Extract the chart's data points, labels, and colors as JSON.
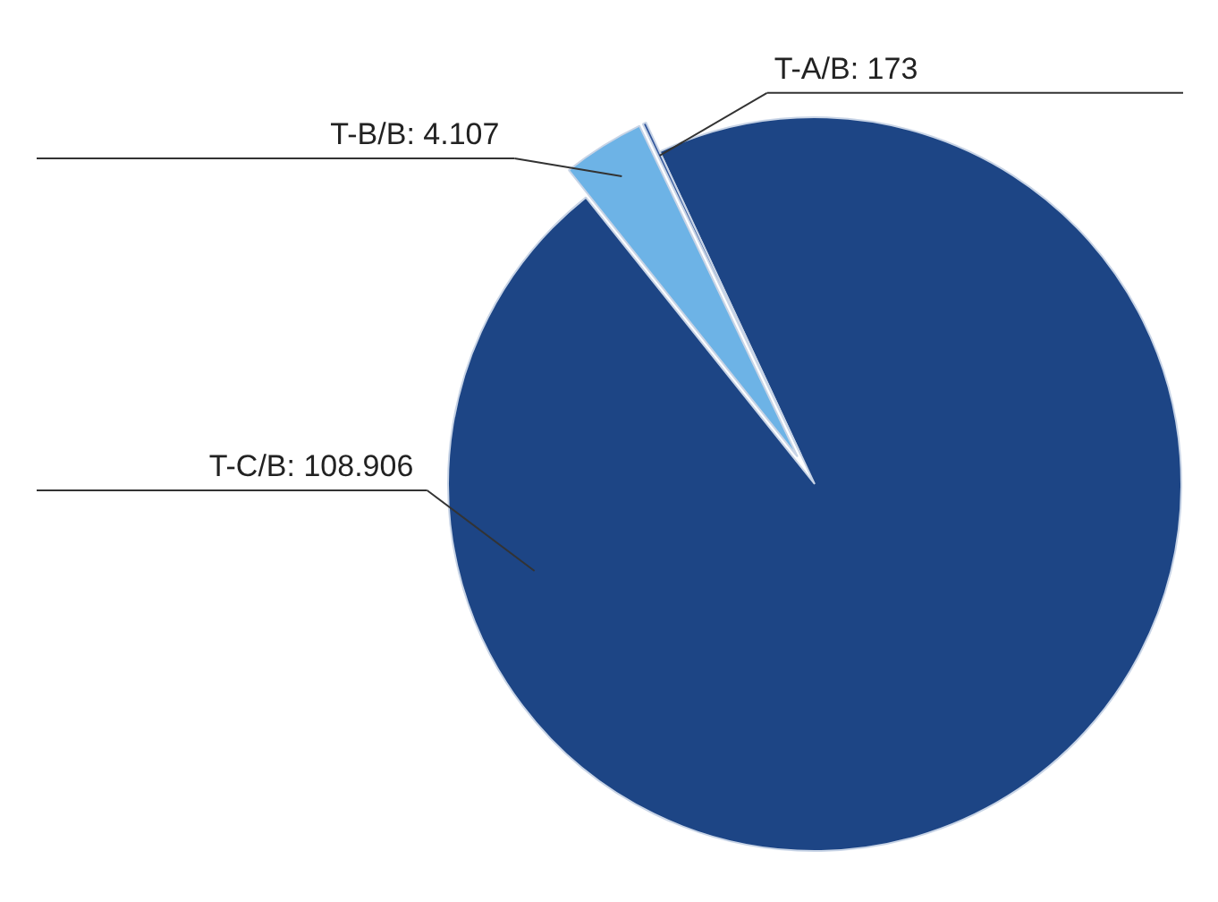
{
  "chart_data": {
    "type": "pie",
    "categories": [
      "T-A/B",
      "T-B/B",
      "T-C/B"
    ],
    "values": [
      173,
      4107,
      108906
    ],
    "colors": [
      "#34589c",
      "#6db3e6",
      "#1d4585"
    ],
    "value_labels": [
      "173",
      "4.107",
      "108.906"
    ]
  }
}
